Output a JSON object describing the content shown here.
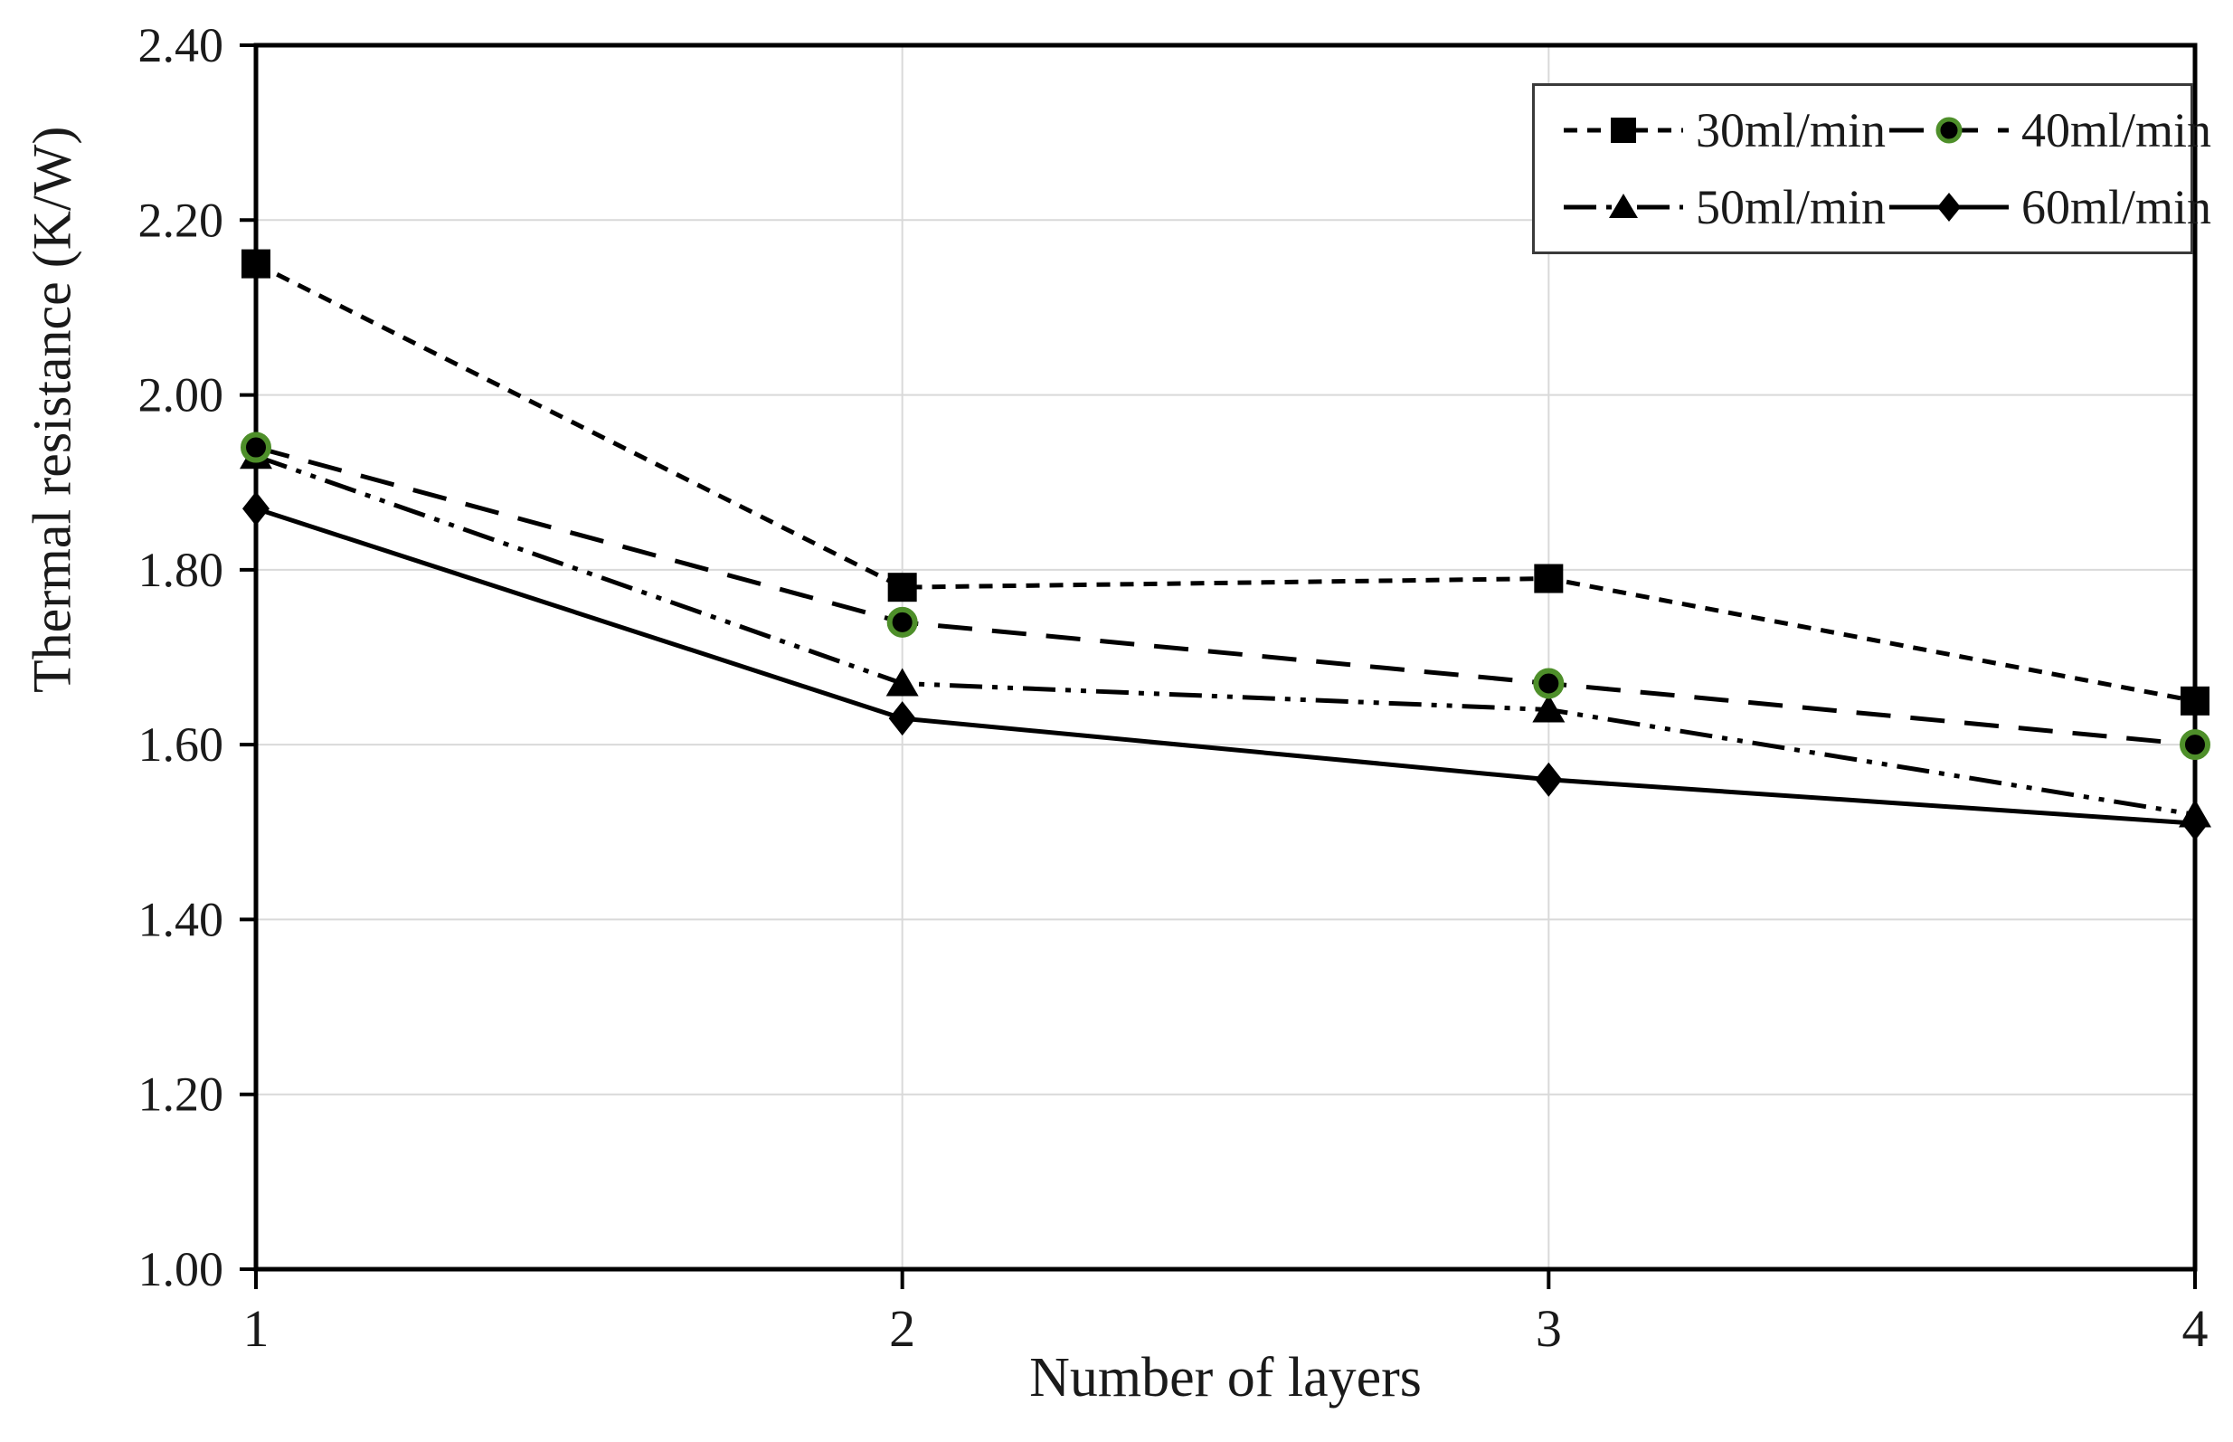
{
  "figure": {
    "background_color": "#ffffff",
    "frame_color": "#000000",
    "gridline_color": "#d9d9d9",
    "text_color": "#1a1a1a",
    "circle_marker_ring_color": "#4e8f2a"
  },
  "chart_data": {
    "type": "line",
    "title": "",
    "xlabel": "Number of layers",
    "ylabel": "Thermal resistance (K/W)",
    "x": [
      1,
      2,
      3,
      4
    ],
    "xlim": [
      1,
      4
    ],
    "ylim": [
      1.0,
      2.4
    ],
    "ytick_step": 0.2,
    "ytick_labels": [
      "1.00",
      "1.20",
      "1.40",
      "1.60",
      "1.80",
      "2.00",
      "2.20",
      "2.40"
    ],
    "xtick_labels": [
      "1",
      "2",
      "3",
      "4"
    ],
    "grid": "on",
    "legend_position": "top-right",
    "legend_order": [
      "30ml/min",
      "40ml/min",
      "50ml/min",
      "60ml/min"
    ],
    "series": [
      {
        "name": "30ml/min",
        "marker": "square",
        "line_style": "dash",
        "color": "#000000",
        "values": [
          2.15,
          1.78,
          1.79,
          1.65
        ]
      },
      {
        "name": "40ml/min",
        "marker": "circle",
        "line_style": "long-dash",
        "color": "#000000",
        "marker_ring_color": "#4e8f2a",
        "values": [
          1.94,
          1.74,
          1.67,
          1.6
        ]
      },
      {
        "name": "50ml/min",
        "marker": "triangle",
        "line_style": "dash-dot-dot",
        "color": "#000000",
        "values": [
          1.93,
          1.67,
          1.64,
          1.52
        ]
      },
      {
        "name": "60ml/min",
        "marker": "diamond",
        "line_style": "solid",
        "color": "#000000",
        "values": [
          1.87,
          1.63,
          1.56,
          1.51
        ]
      }
    ]
  }
}
